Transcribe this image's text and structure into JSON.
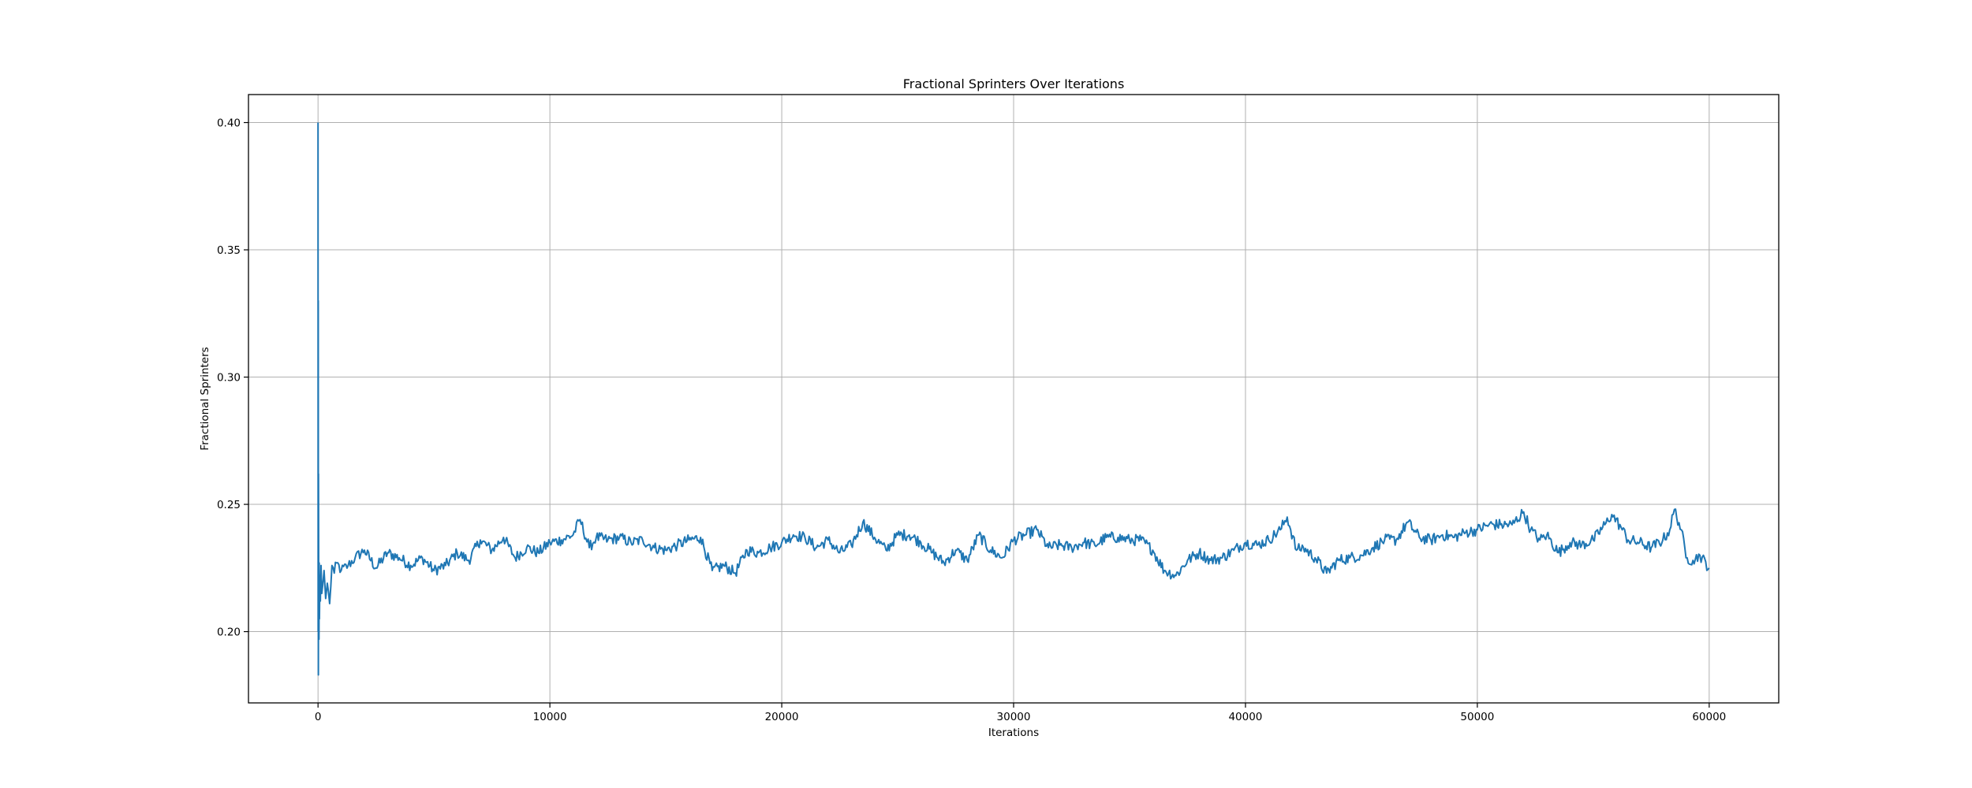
{
  "chart_data": {
    "type": "line",
    "title": "Fractional Sprinters Over Iterations",
    "xlabel": "Iterations",
    "ylabel": "Fractional Sprinters",
    "xlim": [
      -3000,
      63000
    ],
    "ylim": [
      0.172,
      0.411
    ],
    "x_ticks": [
      0,
      10000,
      20000,
      30000,
      40000,
      50000,
      60000
    ],
    "x_tick_labels": [
      "0",
      "10000",
      "20000",
      "30000",
      "40000",
      "50000",
      "60000"
    ],
    "y_ticks": [
      0.2,
      0.25,
      0.3,
      0.35,
      0.4
    ],
    "y_tick_labels": [
      "0.20",
      "0.25",
      "0.30",
      "0.35",
      "0.40"
    ],
    "grid": true,
    "legend": "none",
    "series": [
      {
        "color": "#1f77b4",
        "x": [
          0,
          5,
          10,
          15,
          20,
          30,
          40,
          50,
          60,
          80,
          100,
          130,
          160,
          200,
          260,
          330,
          400,
          500,
          600,
          700,
          800,
          1000,
          1300,
          1600,
          2000,
          2500,
          3000,
          3500,
          4000,
          4500,
          5000,
          5500,
          6000,
          6500,
          7000,
          7500,
          8000,
          8500,
          9000,
          9500,
          10000,
          10500,
          11000,
          11300,
          11700,
          12000,
          12500,
          13000,
          13500,
          14000,
          14500,
          15000,
          15500,
          16000,
          16500,
          17000,
          17500,
          18000,
          18500,
          19000,
          19500,
          20000,
          20500,
          21000,
          21500,
          22000,
          22500,
          23000,
          23500,
          24000,
          24500,
          25000,
          25500,
          26000,
          26500,
          27000,
          27500,
          28000,
          28500,
          29000,
          29500,
          30000,
          30500,
          31000,
          31500,
          32000,
          32500,
          33000,
          33500,
          34000,
          34500,
          35000,
          35500,
          36000,
          36500,
          37000,
          37500,
          38000,
          38500,
          39000,
          39500,
          40000,
          40500,
          41000,
          41500,
          41800,
          42200,
          42500,
          43000,
          43500,
          44000,
          44500,
          45000,
          45500,
          46000,
          46500,
          47000,
          47500,
          48000,
          48500,
          49000,
          49500,
          50000,
          50500,
          51000,
          51500,
          52000,
          52300,
          52700,
          53000,
          53500,
          54000,
          54500,
          55000,
          55500,
          55800,
          56200,
          56500,
          57000,
          57500,
          58000,
          58300,
          58500,
          58800,
          59000,
          59300,
          59600,
          60000
        ],
        "y": [
          0.4,
          0.2,
          0.33,
          0.183,
          0.262,
          0.215,
          0.197,
          0.227,
          0.205,
          0.222,
          0.212,
          0.226,
          0.215,
          0.218,
          0.224,
          0.213,
          0.219,
          0.211,
          0.226,
          0.223,
          0.227,
          0.224,
          0.226,
          0.229,
          0.232,
          0.225,
          0.231,
          0.229,
          0.226,
          0.229,
          0.224,
          0.226,
          0.231,
          0.228,
          0.236,
          0.232,
          0.237,
          0.229,
          0.233,
          0.231,
          0.235,
          0.236,
          0.238,
          0.244,
          0.233,
          0.237,
          0.236,
          0.237,
          0.235,
          0.236,
          0.233,
          0.232,
          0.234,
          0.236,
          0.237,
          0.224,
          0.226,
          0.223,
          0.232,
          0.231,
          0.233,
          0.235,
          0.238,
          0.237,
          0.233,
          0.236,
          0.231,
          0.234,
          0.243,
          0.237,
          0.232,
          0.238,
          0.238,
          0.235,
          0.231,
          0.227,
          0.232,
          0.228,
          0.238,
          0.232,
          0.229,
          0.236,
          0.238,
          0.24,
          0.233,
          0.234,
          0.233,
          0.235,
          0.234,
          0.237,
          0.237,
          0.236,
          0.236,
          0.232,
          0.224,
          0.222,
          0.228,
          0.231,
          0.228,
          0.229,
          0.232,
          0.235,
          0.234,
          0.236,
          0.24,
          0.245,
          0.232,
          0.233,
          0.229,
          0.223,
          0.228,
          0.229,
          0.23,
          0.233,
          0.236,
          0.236,
          0.243,
          0.237,
          0.236,
          0.238,
          0.237,
          0.239,
          0.24,
          0.242,
          0.242,
          0.242,
          0.247,
          0.24,
          0.236,
          0.238,
          0.231,
          0.235,
          0.234,
          0.236,
          0.242,
          0.246,
          0.241,
          0.236,
          0.235,
          0.233,
          0.236,
          0.24,
          0.248,
          0.24,
          0.229,
          0.228,
          0.23,
          0.225
        ]
      }
    ]
  }
}
